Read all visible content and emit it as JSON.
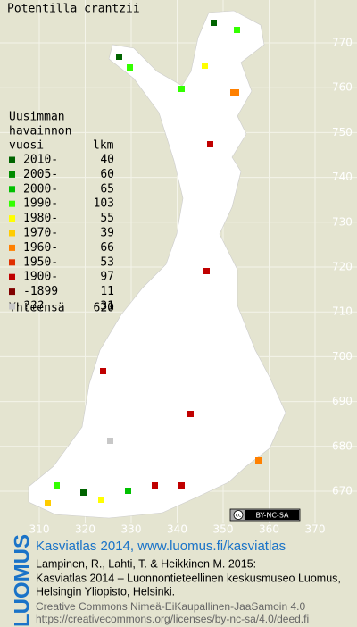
{
  "title": "Potentilla crantzii",
  "legend": {
    "heading": [
      "Uusimman",
      "havainnon",
      "vuosi"
    ],
    "count_heading": "lkm",
    "items": [
      {
        "label": "2010-",
        "count": 40,
        "color": "#006400"
      },
      {
        "label": "2005-",
        "count": 60,
        "color": "#008c00"
      },
      {
        "label": "2000-",
        "count": 65,
        "color": "#00c000"
      },
      {
        "label": "1990-",
        "count": 103,
        "color": "#33ff00"
      },
      {
        "label": "1980-",
        "count": 55,
        "color": "#ffff00"
      },
      {
        "label": "1970-",
        "count": 39,
        "color": "#ffcc00"
      },
      {
        "label": "1960-",
        "count": 66,
        "color": "#ff8000"
      },
      {
        "label": "1950-",
        "count": 53,
        "color": "#e03000"
      },
      {
        "label": "1900-",
        "count": 97,
        "color": "#c00000"
      },
      {
        "label": "-1899",
        "count": 11,
        "color": "#800000"
      },
      {
        "label": "???",
        "count": 31,
        "color": "#c8c8c8"
      }
    ],
    "total": {
      "label": "Yhteensä",
      "count": 620
    }
  },
  "axes": {
    "x_ticks": [
      310,
      320,
      330,
      340,
      350,
      360,
      370
    ],
    "y_ticks": [
      670,
      680,
      690,
      700,
      710,
      720,
      730,
      740,
      750,
      760,
      770
    ]
  },
  "license_badge": {
    "cc": "cc",
    "text": "BY-NC-SA"
  },
  "footer": {
    "logo": "LUOMUS",
    "heading": "Kasviatlas 2014, www.luomus.fi/kasviatlas",
    "citation": [
      "Lampinen, R., Lahti, T. & Heikkinen M. 2015:",
      "Kasviatlas 2014 – Luonnontieteellinen keskusmuseo Luomus,",
      "Helsingin Yliopisto, Helsinki."
    ],
    "license": [
      "Creative Commons Nimeä-EiKaupallinen-JaaSamoin 4.0",
      "https://creativecommons.org/licenses/by-nc-sa/4.0/deed.fi"
    ]
  }
}
